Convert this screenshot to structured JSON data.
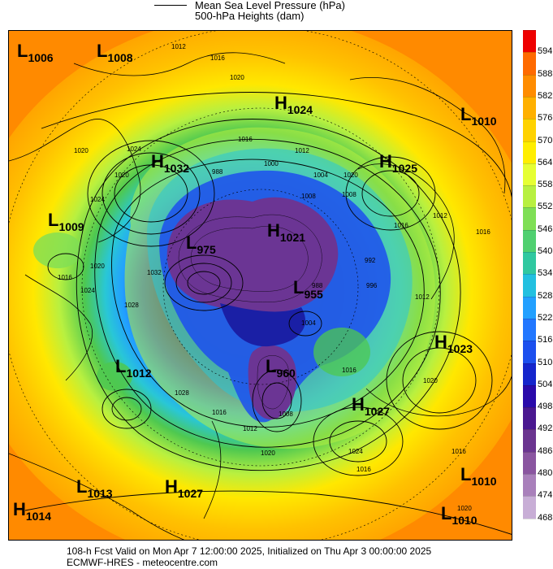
{
  "legend": {
    "line_label": "Mean Sea Level Pressure (hPa)",
    "height_label": "500-hPa Heights (dam)"
  },
  "colorbar": {
    "ticks": [
      "594",
      "588",
      "582",
      "576",
      "570",
      "564",
      "558",
      "552",
      "546",
      "540",
      "534",
      "528",
      "522",
      "516",
      "510",
      "504",
      "498",
      "492",
      "486",
      "480",
      "474",
      "468"
    ],
    "colors": [
      "#ee0000",
      "#ff6a00",
      "#ff8c00",
      "#ffb000",
      "#ffd200",
      "#ffee00",
      "#e6ff33",
      "#b8f040",
      "#7fdf55",
      "#50d070",
      "#30c8a0",
      "#22c0e0",
      "#22a0ff",
      "#2277ff",
      "#1c4fee",
      "#1525cc",
      "#2a0aaa",
      "#4a1890",
      "#6b3590",
      "#8a55a0",
      "#a980bb",
      "#c8aed6",
      "#ffffff"
    ]
  },
  "map": {
    "background_colors": {
      "warm": "#ff8a00",
      "orange": "#ffa300",
      "light_orange": "#ffc200",
      "yellow": "#ffe800",
      "green": "#4ec850",
      "cyan": "#29c7d6",
      "blue": "#1a4fe5",
      "deep_blue": "#1a1fa5",
      "purple": "#6b3594"
    },
    "pressure_centers": [
      {
        "letter": "L",
        "value": "1006"
      },
      {
        "letter": "L",
        "value": "1008"
      },
      {
        "letter": "H",
        "value": "1024"
      },
      {
        "letter": "L",
        "value": "1010"
      },
      {
        "letter": "H",
        "value": "1032"
      },
      {
        "letter": "H",
        "value": "1025"
      },
      {
        "letter": "L",
        "value": "1009"
      },
      {
        "letter": "L",
        "value": "975"
      },
      {
        "letter": "H",
        "value": "1021"
      },
      {
        "letter": "L",
        "value": "955"
      },
      {
        "letter": "H",
        "value": "1023"
      },
      {
        "letter": "L",
        "value": "1012"
      },
      {
        "letter": "L",
        "value": "960"
      },
      {
        "letter": "H",
        "value": "1027"
      },
      {
        "letter": "L",
        "value": "1013"
      },
      {
        "letter": "H",
        "value": "1027"
      },
      {
        "letter": "L",
        "value": "1010"
      },
      {
        "letter": "H",
        "value": "1014"
      },
      {
        "letter": "L",
        "value": "1010"
      }
    ],
    "contour_labels": [
      "1012",
      "1016",
      "1020",
      "1024",
      "1016",
      "1012",
      "988",
      "1000",
      "1004",
      "1008",
      "1020",
      "1016",
      "1012",
      "992",
      "988",
      "996",
      "1016",
      "1020",
      "1024",
      "1028",
      "1032",
      "1016",
      "1028",
      "1020",
      "1024",
      "1016",
      "1012",
      "1008",
      "1004",
      "1016",
      "1020",
      "1016",
      "1020",
      "1012",
      "1016",
      "1020",
      "1008",
      "1024",
      "1020"
    ]
  },
  "footer": {
    "line1": "108-h Fcst Valid on Mon Apr  7 12:00:00 2025, Initialized on Thu Apr  3 00:00:00 2025",
    "line2": "ECMWF-HRES  - meteocentre.com"
  }
}
